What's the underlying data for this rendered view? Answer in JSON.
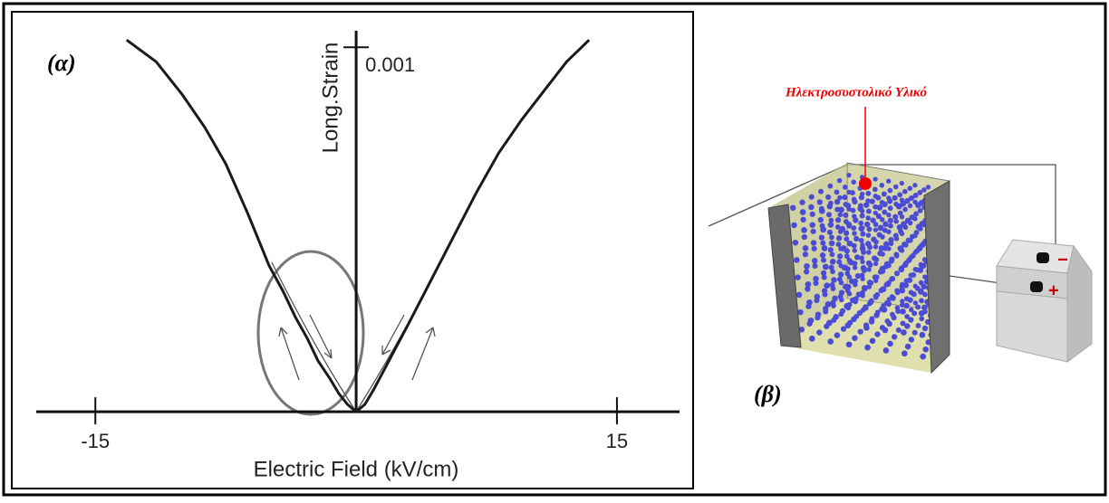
{
  "chart_data": {
    "type": "line",
    "annotation": "(α)",
    "x_label": "Electric Field (kV/cm)",
    "y_label": "Long.Strain",
    "xlim": [
      -18.4,
      18.6
    ],
    "ylim": [
      -0.000186,
      0.00108
    ],
    "xticks": [
      -15,
      15
    ],
    "yticks": [
      0.001
    ],
    "series": [
      {
        "color": "#1a1a1a",
        "x": [
          -13.2,
          -11.5,
          -10,
          -8.7,
          -7.5,
          -6.2,
          -5,
          -4.2,
          -3.5,
          -2.8,
          -2.2,
          -1.5,
          -1,
          -0.5,
          0
        ],
        "values": [
          0.00102,
          0.00096,
          0.00087,
          0.00078,
          0.00068,
          0.00054,
          0.0004,
          0.00033,
          0.00026,
          0.0002,
          0.00014,
          9e-05,
          5e-05,
          2e-05,
          0
        ]
      },
      {
        "color": "#1a1a1a",
        "x": [
          0,
          0.5,
          1,
          2,
          3,
          4.3,
          5.6,
          6.9,
          8.2,
          9.5,
          10.8,
          12.1,
          13.4
        ],
        "values": [
          0,
          2e-05,
          6e-05,
          0.00015,
          0.00024,
          0.00036,
          0.00048,
          0.0006,
          0.00071,
          0.0008,
          0.00088,
          0.00096,
          0.00102
        ]
      }
    ]
  },
  "panel_b": {
    "annotation": "(β)",
    "material_label": "Ηλεκτροσυστολικό Υλικό",
    "terminal_minus": "−",
    "terminal_plus": "+"
  }
}
